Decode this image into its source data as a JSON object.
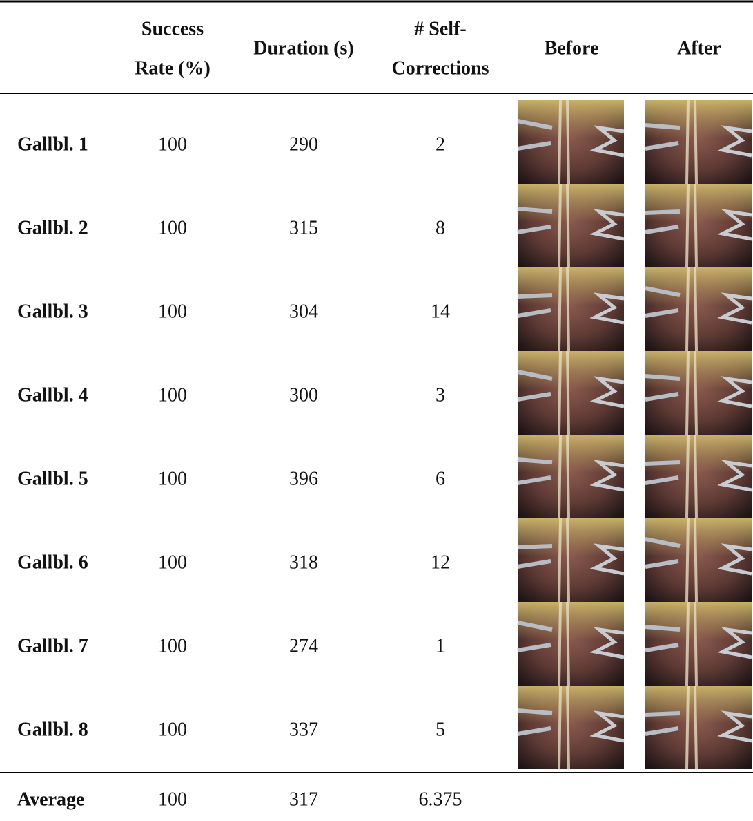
{
  "header": {
    "columns": [
      [
        "Success",
        "Rate (%)"
      ],
      [
        "Duration (s)"
      ],
      [
        "# Self-",
        "Corrections"
      ],
      [
        "Before"
      ],
      [
        "After"
      ]
    ]
  },
  "table": {
    "rows": [
      [
        "Gallbl. 1",
        100,
        290,
        2
      ],
      [
        "Gallbl. 2",
        100,
        315,
        8
      ],
      [
        "Gallbl. 3",
        100,
        304,
        14
      ],
      [
        "Gallbl. 4",
        100,
        300,
        3
      ],
      [
        "Gallbl. 5",
        100,
        396,
        6
      ],
      [
        "Gallbl. 6",
        100,
        318,
        12
      ],
      [
        "Gallbl. 7",
        100,
        274,
        1
      ],
      [
        "Gallbl. 8",
        100,
        337,
        5
      ]
    ],
    "average": [
      "Average",
      100,
      317,
      6.375
    ]
  }
}
